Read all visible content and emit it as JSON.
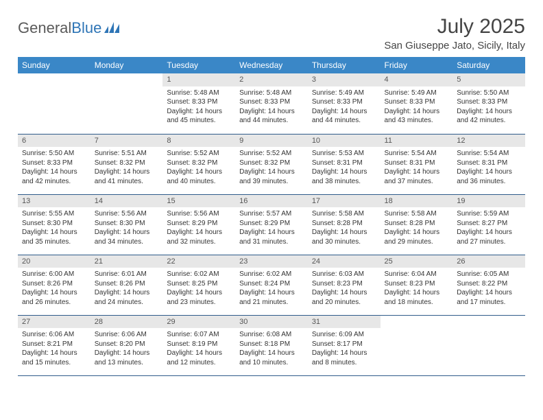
{
  "logo": {
    "text1": "General",
    "text2": "Blue"
  },
  "title": "July 2025",
  "location": "San Giuseppe Jato, Sicily, Italy",
  "colors": {
    "header_bg": "#3a87c7",
    "header_fg": "#ffffff",
    "daynum_bg": "#e7e7e7",
    "row_border": "#2e5b8a",
    "logo_blue": "#2e75b6"
  },
  "weekdays": [
    "Sunday",
    "Monday",
    "Tuesday",
    "Wednesday",
    "Thursday",
    "Friday",
    "Saturday"
  ],
  "weeks": [
    [
      {
        "day": "",
        "sunrise": "",
        "sunset": "",
        "daylight": ""
      },
      {
        "day": "",
        "sunrise": "",
        "sunset": "",
        "daylight": ""
      },
      {
        "day": "1",
        "sunrise": "Sunrise: 5:48 AM",
        "sunset": "Sunset: 8:33 PM",
        "daylight": "Daylight: 14 hours and 45 minutes."
      },
      {
        "day": "2",
        "sunrise": "Sunrise: 5:48 AM",
        "sunset": "Sunset: 8:33 PM",
        "daylight": "Daylight: 14 hours and 44 minutes."
      },
      {
        "day": "3",
        "sunrise": "Sunrise: 5:49 AM",
        "sunset": "Sunset: 8:33 PM",
        "daylight": "Daylight: 14 hours and 44 minutes."
      },
      {
        "day": "4",
        "sunrise": "Sunrise: 5:49 AM",
        "sunset": "Sunset: 8:33 PM",
        "daylight": "Daylight: 14 hours and 43 minutes."
      },
      {
        "day": "5",
        "sunrise": "Sunrise: 5:50 AM",
        "sunset": "Sunset: 8:33 PM",
        "daylight": "Daylight: 14 hours and 42 minutes."
      }
    ],
    [
      {
        "day": "6",
        "sunrise": "Sunrise: 5:50 AM",
        "sunset": "Sunset: 8:33 PM",
        "daylight": "Daylight: 14 hours and 42 minutes."
      },
      {
        "day": "7",
        "sunrise": "Sunrise: 5:51 AM",
        "sunset": "Sunset: 8:32 PM",
        "daylight": "Daylight: 14 hours and 41 minutes."
      },
      {
        "day": "8",
        "sunrise": "Sunrise: 5:52 AM",
        "sunset": "Sunset: 8:32 PM",
        "daylight": "Daylight: 14 hours and 40 minutes."
      },
      {
        "day": "9",
        "sunrise": "Sunrise: 5:52 AM",
        "sunset": "Sunset: 8:32 PM",
        "daylight": "Daylight: 14 hours and 39 minutes."
      },
      {
        "day": "10",
        "sunrise": "Sunrise: 5:53 AM",
        "sunset": "Sunset: 8:31 PM",
        "daylight": "Daylight: 14 hours and 38 minutes."
      },
      {
        "day": "11",
        "sunrise": "Sunrise: 5:54 AM",
        "sunset": "Sunset: 8:31 PM",
        "daylight": "Daylight: 14 hours and 37 minutes."
      },
      {
        "day": "12",
        "sunrise": "Sunrise: 5:54 AM",
        "sunset": "Sunset: 8:31 PM",
        "daylight": "Daylight: 14 hours and 36 minutes."
      }
    ],
    [
      {
        "day": "13",
        "sunrise": "Sunrise: 5:55 AM",
        "sunset": "Sunset: 8:30 PM",
        "daylight": "Daylight: 14 hours and 35 minutes."
      },
      {
        "day": "14",
        "sunrise": "Sunrise: 5:56 AM",
        "sunset": "Sunset: 8:30 PM",
        "daylight": "Daylight: 14 hours and 34 minutes."
      },
      {
        "day": "15",
        "sunrise": "Sunrise: 5:56 AM",
        "sunset": "Sunset: 8:29 PM",
        "daylight": "Daylight: 14 hours and 32 minutes."
      },
      {
        "day": "16",
        "sunrise": "Sunrise: 5:57 AM",
        "sunset": "Sunset: 8:29 PM",
        "daylight": "Daylight: 14 hours and 31 minutes."
      },
      {
        "day": "17",
        "sunrise": "Sunrise: 5:58 AM",
        "sunset": "Sunset: 8:28 PM",
        "daylight": "Daylight: 14 hours and 30 minutes."
      },
      {
        "day": "18",
        "sunrise": "Sunrise: 5:58 AM",
        "sunset": "Sunset: 8:28 PM",
        "daylight": "Daylight: 14 hours and 29 minutes."
      },
      {
        "day": "19",
        "sunrise": "Sunrise: 5:59 AM",
        "sunset": "Sunset: 8:27 PM",
        "daylight": "Daylight: 14 hours and 27 minutes."
      }
    ],
    [
      {
        "day": "20",
        "sunrise": "Sunrise: 6:00 AM",
        "sunset": "Sunset: 8:26 PM",
        "daylight": "Daylight: 14 hours and 26 minutes."
      },
      {
        "day": "21",
        "sunrise": "Sunrise: 6:01 AM",
        "sunset": "Sunset: 8:26 PM",
        "daylight": "Daylight: 14 hours and 24 minutes."
      },
      {
        "day": "22",
        "sunrise": "Sunrise: 6:02 AM",
        "sunset": "Sunset: 8:25 PM",
        "daylight": "Daylight: 14 hours and 23 minutes."
      },
      {
        "day": "23",
        "sunrise": "Sunrise: 6:02 AM",
        "sunset": "Sunset: 8:24 PM",
        "daylight": "Daylight: 14 hours and 21 minutes."
      },
      {
        "day": "24",
        "sunrise": "Sunrise: 6:03 AM",
        "sunset": "Sunset: 8:23 PM",
        "daylight": "Daylight: 14 hours and 20 minutes."
      },
      {
        "day": "25",
        "sunrise": "Sunrise: 6:04 AM",
        "sunset": "Sunset: 8:23 PM",
        "daylight": "Daylight: 14 hours and 18 minutes."
      },
      {
        "day": "26",
        "sunrise": "Sunrise: 6:05 AM",
        "sunset": "Sunset: 8:22 PM",
        "daylight": "Daylight: 14 hours and 17 minutes."
      }
    ],
    [
      {
        "day": "27",
        "sunrise": "Sunrise: 6:06 AM",
        "sunset": "Sunset: 8:21 PM",
        "daylight": "Daylight: 14 hours and 15 minutes."
      },
      {
        "day": "28",
        "sunrise": "Sunrise: 6:06 AM",
        "sunset": "Sunset: 8:20 PM",
        "daylight": "Daylight: 14 hours and 13 minutes."
      },
      {
        "day": "29",
        "sunrise": "Sunrise: 6:07 AM",
        "sunset": "Sunset: 8:19 PM",
        "daylight": "Daylight: 14 hours and 12 minutes."
      },
      {
        "day": "30",
        "sunrise": "Sunrise: 6:08 AM",
        "sunset": "Sunset: 8:18 PM",
        "daylight": "Daylight: 14 hours and 10 minutes."
      },
      {
        "day": "31",
        "sunrise": "Sunrise: 6:09 AM",
        "sunset": "Sunset: 8:17 PM",
        "daylight": "Daylight: 14 hours and 8 minutes."
      },
      {
        "day": "",
        "sunrise": "",
        "sunset": "",
        "daylight": ""
      },
      {
        "day": "",
        "sunrise": "",
        "sunset": "",
        "daylight": ""
      }
    ]
  ]
}
